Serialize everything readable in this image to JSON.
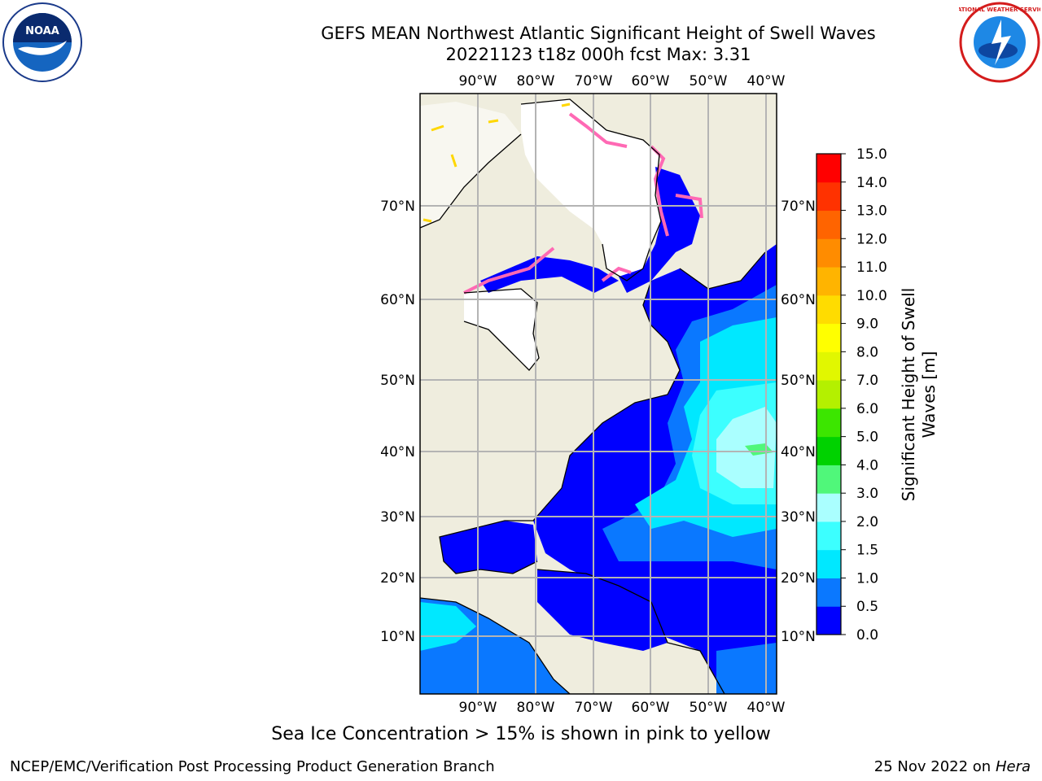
{
  "header": {
    "title_line1": "GEFS MEAN Northwest Atlantic Significant Height of Swell Waves",
    "title_line2": "20221123 t18z 000h fcst   Max: 3.31"
  },
  "logos": {
    "left": {
      "icon": "noaa-logo",
      "text": "NOAA"
    },
    "right": {
      "icon": "nws-logo",
      "text": "NATIONAL WEATHER SERVICE"
    }
  },
  "map": {
    "lon_labels": [
      "90°W",
      "80°W",
      "70°W",
      "60°W",
      "50°W",
      "40°W"
    ],
    "lat_labels": [
      "70°N",
      "60°N",
      "50°N",
      "40°N",
      "30°N",
      "20°N",
      "10°N"
    ],
    "colors": {
      "land": "#efedde",
      "ice_free_white": "#ffffff",
      "grid": "#b4b4b4",
      "ice_pink": "#ff69b4",
      "ice_yellow": "#ffd700"
    }
  },
  "colorbar": {
    "label": "Significant Height of Swell Waves [m]",
    "ticks": [
      "0.0",
      "0.5",
      "1.0",
      "1.5",
      "2.0",
      "3.0",
      "4.0",
      "5.0",
      "6.0",
      "7.0",
      "8.0",
      "9.0",
      "10.0",
      "11.0",
      "12.0",
      "13.0",
      "14.0",
      "15.0"
    ],
    "colors": [
      "#0000ff",
      "#0a78ff",
      "#00e8ff",
      "#3cffff",
      "#aaffff",
      "#50f77a",
      "#00d200",
      "#3ce600",
      "#b4f000",
      "#e1f700",
      "#ffff00",
      "#ffdc00",
      "#ffb400",
      "#ff8c00",
      "#ff6400",
      "#ff3200",
      "#ff0000"
    ]
  },
  "footer": {
    "ice_note": "Sea Ice Concentration > 15% is shown in pink to yellow",
    "branch": "NCEP/EMC/Verification Post Processing Product Generation Branch",
    "date": "25 Nov 2022 on",
    "host": "Hera"
  }
}
